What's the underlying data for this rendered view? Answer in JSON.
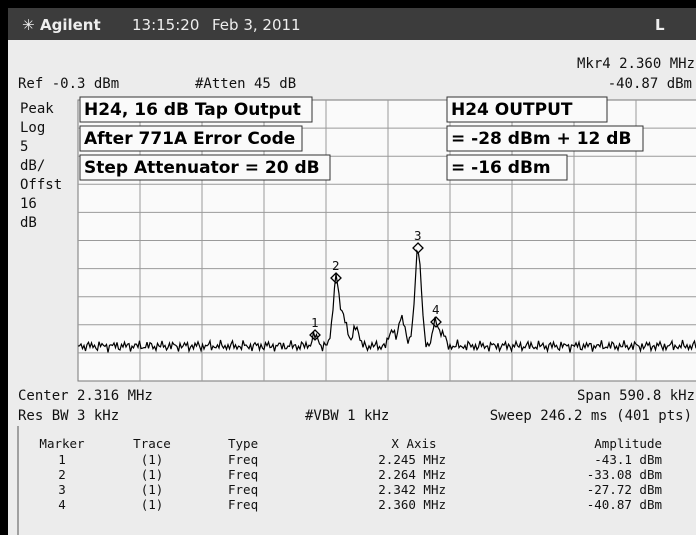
{
  "header": {
    "brand": "Agilent",
    "time": "13:15:20",
    "date": "Feb 3, 2011",
    "mode": "L"
  },
  "status": {
    "marker": "Mkr4  2.360 MHz",
    "ref": "Ref -0.3 dBm",
    "atten": "#Atten 45 dB",
    "marker_amplitude": "-40.87 dBm"
  },
  "left_labels": [
    "Peak",
    "Log",
    "5",
    "dB/",
    "Offst",
    "16",
    "dB"
  ],
  "annotations": {
    "left": [
      "H24, 16 dB Tap Output",
      "After 771A Error Code",
      "Step Attenuator = 20 dB"
    ],
    "right": [
      "H24 OUTPUT",
      "= -28 dBm + 12 dB",
      "= -16 dBm"
    ]
  },
  "trace_markers": [
    "1",
    "2",
    "3",
    "4"
  ],
  "footer": {
    "center": "Center 2.316 MHz",
    "span": "Span 590.8 kHz",
    "res_bw": "Res BW 3 kHz",
    "vbw": "#VBW 1 kHz",
    "sweep": "Sweep 246.2 ms (401 pts)"
  },
  "table": {
    "header": [
      "Marker",
      "Trace",
      "Type",
      "X Axis",
      "Amplitude"
    ],
    "rows": [
      [
        "1",
        "(1)",
        "Freq",
        "2.245 MHz",
        "-43.1 dBm"
      ],
      [
        "2",
        "(1)",
        "Freq",
        "2.264 MHz",
        "-33.08 dBm"
      ],
      [
        "3",
        "(1)",
        "Freq",
        "2.342 MHz",
        "-27.72 dBm"
      ],
      [
        "4",
        "(1)",
        "Freq",
        "2.360 MHz",
        "-40.87 dBm"
      ]
    ]
  }
}
